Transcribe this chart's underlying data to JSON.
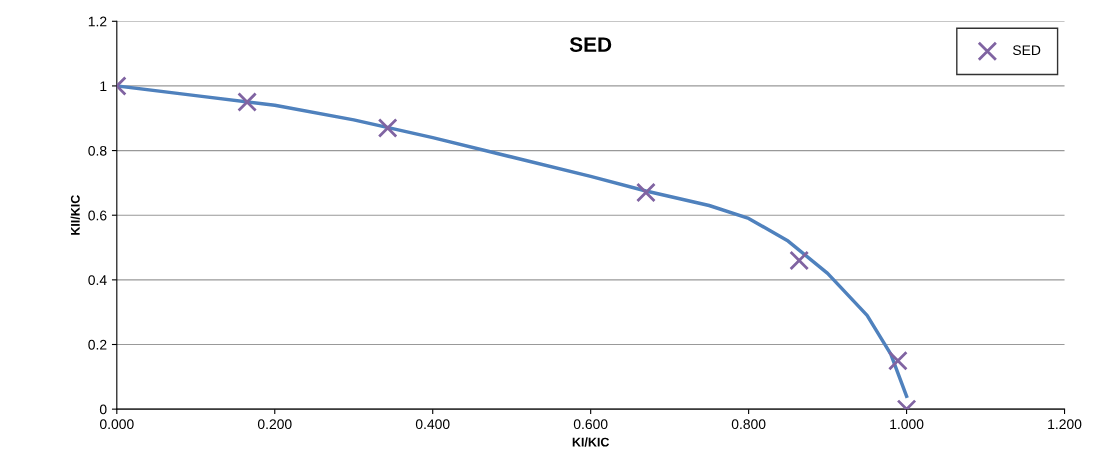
{
  "chart_data": {
    "type": "scatter",
    "title": "SED",
    "xlabel": "KI/KIC",
    "ylabel": "KII/KIC",
    "series": [
      {
        "type": "line",
        "color": "#4f81bd",
        "marker": "none",
        "x": [
          0,
          0.1,
          0.2,
          0.3,
          0.4,
          0.5,
          0.6,
          0.67,
          0.75,
          0.8,
          0.85,
          0.9,
          0.95,
          0.98,
          1.0
        ],
        "values": [
          1.0,
          0.97,
          0.94,
          0.895,
          0.84,
          0.78,
          0.72,
          0.675,
          0.63,
          0.59,
          0.52,
          0.42,
          0.29,
          0.17,
          0.04
        ]
      },
      {
        "name": "SED",
        "color": "#8064a2",
        "marker": "cross",
        "x": [
          0,
          0.165,
          0.343,
          0.67,
          0.864,
          0.989,
          1.0
        ],
        "values": [
          1.0,
          0.95,
          0.87,
          0.67,
          0.46,
          0.15,
          0
        ]
      }
    ],
    "xlim": [
      0,
      1.2
    ],
    "xticks": [
      {
        "value": 0,
        "label": "0.000"
      },
      {
        "value": 0.2,
        "label": "0.200"
      },
      {
        "value": 0.4,
        "label": "0.400"
      },
      {
        "value": 0.6,
        "label": "0.600"
      },
      {
        "value": 0.8,
        "label": "0.800"
      },
      {
        "value": 1.0,
        "label": "1.000"
      },
      {
        "value": 1.2,
        "label": "1.200"
      }
    ],
    "ylim": [
      0,
      1.2
    ],
    "yticks": [
      0,
      0.2,
      0.4,
      0.6,
      0.8,
      1,
      1.2
    ],
    "grid": "y",
    "legend": "top right"
  }
}
